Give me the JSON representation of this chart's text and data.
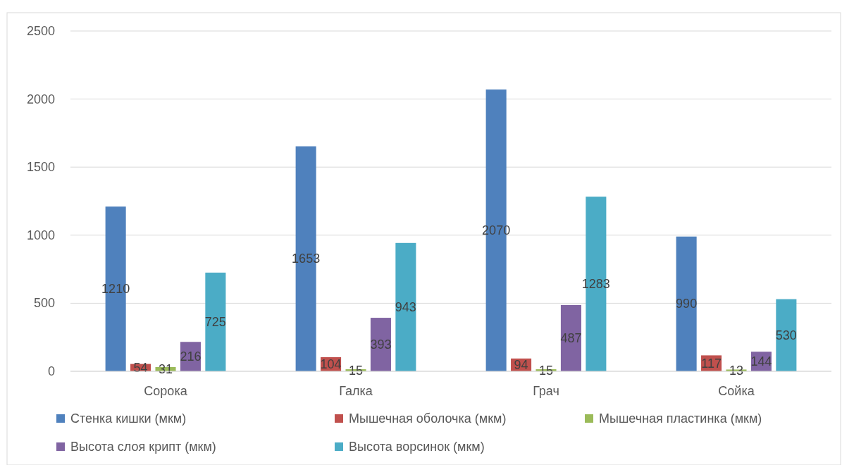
{
  "chart_data": {
    "type": "bar",
    "categories": [
      "Сорока",
      "Галка",
      "Грач",
      "Сойка"
    ],
    "series": [
      {
        "name": "Стенка кишки (мкм)",
        "color": "#4f81bd",
        "values": [
          1210,
          1653,
          2070,
          990
        ]
      },
      {
        "name": "Мышечная оболочка (мкм)",
        "color": "#c0504d",
        "values": [
          54,
          104,
          94,
          117
        ]
      },
      {
        "name": "Мышечная пластинка (мкм)",
        "color": "#9bbb59",
        "values": [
          31,
          15,
          15,
          13
        ]
      },
      {
        "name": "Высота слоя крипт (мкм)",
        "color": "#8064a2",
        "values": [
          216,
          393,
          487,
          144
        ]
      },
      {
        "name": "Высота ворсинок (мкм)",
        "color": "#4bacc6",
        "values": [
          725,
          943,
          1283,
          530
        ]
      }
    ],
    "ylim": [
      0,
      2500
    ],
    "yticks": [
      0,
      500,
      1000,
      1500,
      2000,
      2500
    ],
    "grid": "y",
    "legend": "bottom",
    "data_labels": true
  }
}
